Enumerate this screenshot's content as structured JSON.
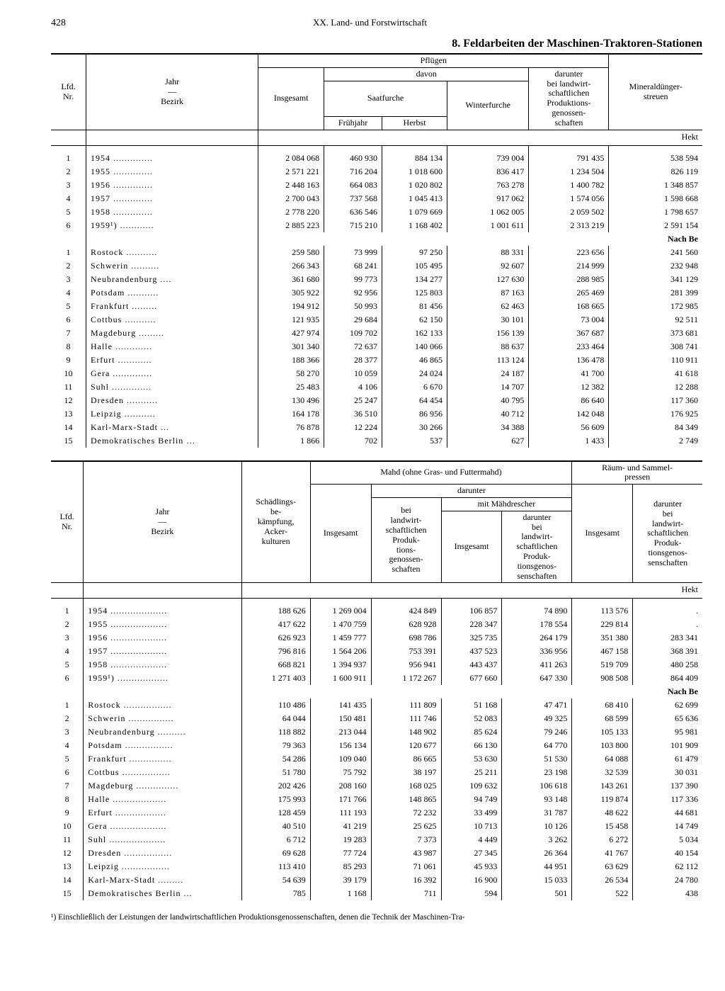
{
  "page_number": "428",
  "chapter": "XX. Land- und Forstwirtschaft",
  "title": "8. Feldarbeiten der Maschinen-Traktoren-Stationen",
  "unit_label": "Hekt",
  "section_label": "Nach Be",
  "footnote": "¹) Einschließlich der Leistungen der landwirtschaftlichen Produktionsgenossenschaften, denen die Technik der Maschinen-Tra-",
  "table1": {
    "head": {
      "lfd": "Lfd.\nNr.",
      "jahr": "Jahr",
      "bezirk": "Bezirk",
      "pfluegen": "Pflügen",
      "insgesamt": "Insgesamt",
      "davon": "davon",
      "saatfurche": "Saatfurche",
      "fruehjahr": "Frühjahr",
      "herbst": "Herbst",
      "winterfurche": "Winterfurche",
      "darunter": "darunter\nbei landwirt-\nschaftlichen\nProduktions-\ngenossen-\nschaften",
      "mineral": "Mineraldünger-\nstreuen"
    },
    "years": [
      {
        "nr": "1",
        "lbl": "1954",
        "c": [
          "2 084 068",
          "460 930",
          "884 134",
          "739 004",
          "791 435",
          "538 594"
        ]
      },
      {
        "nr": "2",
        "lbl": "1955",
        "c": [
          "2 571 221",
          "716 204",
          "1 018 600",
          "836 417",
          "1 234 504",
          "826 119"
        ]
      },
      {
        "nr": "3",
        "lbl": "1956",
        "c": [
          "2 448 163",
          "664 083",
          "1 020 802",
          "763 278",
          "1 400 782",
          "1 348 857"
        ]
      },
      {
        "nr": "4",
        "lbl": "1957",
        "c": [
          "2 700 043",
          "737 568",
          "1 045 413",
          "917 062",
          "1 574 056",
          "1 598 668"
        ]
      },
      {
        "nr": "5",
        "lbl": "1958",
        "c": [
          "2 778 220",
          "636 546",
          "1 079 669",
          "1 062 005",
          "2 059 502",
          "1 798 657"
        ]
      },
      {
        "nr": "6",
        "lbl": "1959¹)",
        "c": [
          "2 885 223",
          "715 210",
          "1 168 402",
          "1 001 611",
          "2 313 219",
          "2 591 154"
        ]
      }
    ],
    "bezirke": [
      {
        "nr": "1",
        "lbl": "Rostock",
        "c": [
          "259 580",
          "73 999",
          "97 250",
          "88 331",
          "223 656",
          "241 560"
        ]
      },
      {
        "nr": "2",
        "lbl": "Schwerin",
        "c": [
          "266 343",
          "68 241",
          "105 495",
          "92 607",
          "214 999",
          "232 948"
        ]
      },
      {
        "nr": "3",
        "lbl": "Neubrandenburg",
        "c": [
          "361 680",
          "99 773",
          "134 277",
          "127 630",
          "288 985",
          "341 129"
        ]
      },
      {
        "nr": "4",
        "lbl": "Potsdam",
        "c": [
          "305 922",
          "92 956",
          "125 803",
          "87 163",
          "265 469",
          "281 399"
        ]
      },
      {
        "nr": "5",
        "lbl": "Frankfurt",
        "c": [
          "194 912",
          "50 993",
          "81 456",
          "62 463",
          "168 665",
          "172 985"
        ]
      },
      {
        "nr": "6",
        "lbl": "Cottbus",
        "c": [
          "121 935",
          "29 684",
          "62 150",
          "30 101",
          "73 004",
          "92 511"
        ]
      },
      {
        "nr": "7",
        "lbl": "Magdeburg",
        "c": [
          "427 974",
          "109 702",
          "162 133",
          "156 139",
          "367 687",
          "373 681"
        ]
      },
      {
        "nr": "8",
        "lbl": "Halle",
        "c": [
          "301 340",
          "72 637",
          "140 066",
          "88 637",
          "233 464",
          "308 741"
        ]
      },
      {
        "nr": "9",
        "lbl": "Erfurt",
        "c": [
          "188 366",
          "28 377",
          "46 865",
          "113 124",
          "136 478",
          "110 911"
        ]
      },
      {
        "nr": "10",
        "lbl": "Gera",
        "c": [
          "58 270",
          "10 059",
          "24 024",
          "24 187",
          "41 700",
          "41 618"
        ]
      },
      {
        "nr": "11",
        "lbl": "Suhl",
        "c": [
          "25 483",
          "4 106",
          "6 670",
          "14 707",
          "12 382",
          "12 288"
        ]
      },
      {
        "nr": "12",
        "lbl": "Dresden",
        "c": [
          "130 496",
          "25 247",
          "64 454",
          "40 795",
          "86 640",
          "117 360"
        ]
      },
      {
        "nr": "13",
        "lbl": "Leipzig",
        "c": [
          "164 178",
          "36 510",
          "86 956",
          "40 712",
          "142 048",
          "176 925"
        ]
      },
      {
        "nr": "14",
        "lbl": "Karl-Marx-Stadt",
        "c": [
          "76 878",
          "12 224",
          "30 266",
          "34 388",
          "56 609",
          "84 349"
        ]
      },
      {
        "nr": "15",
        "lbl": "Demokratisches Berlin",
        "c": [
          "1 866",
          "702",
          "537",
          "627",
          "1 433",
          "2 749"
        ]
      }
    ]
  },
  "table2": {
    "head": {
      "lfd": "Lfd.\nNr.",
      "jahr": "Jahr",
      "bezirk": "Bezirk",
      "schaedling": "Schädlings-\nbe-\nkämpfung,\nAcker-\nkulturen",
      "mahd": "Mahd (ohne Gras- und Futtermahd)",
      "darunter": "darunter",
      "insgesamt": "Insgesamt",
      "bei_lpg": "bei\nlandwirt-\nschaftlichen\nProduk-\ntions-\ngenossen-\nschaften",
      "maehdrescher": "mit Mähdrescher",
      "md_insg": "Insgesamt",
      "md_lpg": "darunter\nbei\nlandwirt-\nschaftlichen\nProduk-\ntionsgenos-\nsenschaften",
      "raeum": "Räum- und Sammel-\npressen",
      "rp_insg": "Insgesamt",
      "rp_lpg": "darunter\nbei\nlandwirt-\nschaftlichen\nProduk-\ntionsgenos-\nsenschaften"
    },
    "years": [
      {
        "nr": "1",
        "lbl": "1954",
        "c": [
          "188 626",
          "1 269 004",
          "424 849",
          "106 857",
          "74 890",
          "113 576",
          "."
        ]
      },
      {
        "nr": "2",
        "lbl": "1955",
        "c": [
          "417 622",
          "1 470 759",
          "628 928",
          "228 347",
          "178 554",
          "229 814",
          "."
        ]
      },
      {
        "nr": "3",
        "lbl": "1956",
        "c": [
          "626 923",
          "1 459 777",
          "698 786",
          "325 735",
          "264 179",
          "351 380",
          "283 341"
        ]
      },
      {
        "nr": "4",
        "lbl": "1957",
        "c": [
          "796 816",
          "1 564 206",
          "753 391",
          "437 523",
          "336 956",
          "467 158",
          "368 391"
        ]
      },
      {
        "nr": "5",
        "lbl": "1958",
        "c": [
          "668 821",
          "1 394 937",
          "956 941",
          "443 437",
          "411 263",
          "519 709",
          "480 258"
        ]
      },
      {
        "nr": "6",
        "lbl": "1959¹)",
        "c": [
          "1 271 403",
          "1 600 911",
          "1 172 267",
          "677 660",
          "647 330",
          "908 508",
          "864 409"
        ]
      }
    ],
    "bezirke": [
      {
        "nr": "1",
        "lbl": "Rostock",
        "c": [
          "110 486",
          "141 435",
          "111 809",
          "51 168",
          "47 471",
          "68 410",
          "62 699"
        ]
      },
      {
        "nr": "2",
        "lbl": "Schwerin",
        "c": [
          "64 044",
          "150 481",
          "111 746",
          "52 083",
          "49 325",
          "68 599",
          "65 636"
        ]
      },
      {
        "nr": "3",
        "lbl": "Neubrandenburg",
        "c": [
          "118 882",
          "213 044",
          "148 902",
          "85 624",
          "79 246",
          "105 133",
          "95 981"
        ]
      },
      {
        "nr": "4",
        "lbl": "Potsdam",
        "c": [
          "79 363",
          "156 134",
          "120 677",
          "66 130",
          "64 770",
          "103 800",
          "101 909"
        ]
      },
      {
        "nr": "5",
        "lbl": "Frankfurt",
        "c": [
          "54 286",
          "109 040",
          "86 665",
          "53 630",
          "51 530",
          "64 088",
          "61 479"
        ]
      },
      {
        "nr": "6",
        "lbl": "Cottbus",
        "c": [
          "51 780",
          "75 792",
          "38 197",
          "25 211",
          "23 198",
          "32 539",
          "30 031"
        ]
      },
      {
        "nr": "7",
        "lbl": "Magdeburg",
        "c": [
          "202 426",
          "208 160",
          "168 025",
          "109 632",
          "106 618",
          "143 261",
          "137 390"
        ]
      },
      {
        "nr": "8",
        "lbl": "Halle",
        "c": [
          "175 993",
          "171 766",
          "148 865",
          "94 749",
          "93 148",
          "119 874",
          "117 336"
        ]
      },
      {
        "nr": "9",
        "lbl": "Erfurt",
        "c": [
          "128 459",
          "111 193",
          "72 232",
          "33 499",
          "31 787",
          "48 622",
          "44 681"
        ]
      },
      {
        "nr": "10",
        "lbl": "Gera",
        "c": [
          "40 510",
          "41 219",
          "25 625",
          "10 713",
          "10 126",
          "15 458",
          "14 749"
        ]
      },
      {
        "nr": "11",
        "lbl": "Suhl",
        "c": [
          "6 712",
          "19 283",
          "7 373",
          "4 449",
          "3 262",
          "6 272",
          "5 034"
        ]
      },
      {
        "nr": "12",
        "lbl": "Dresden",
        "c": [
          "69 628",
          "77 724",
          "43 987",
          "27 345",
          "26 364",
          "41 767",
          "40 154"
        ]
      },
      {
        "nr": "13",
        "lbl": "Leipzig",
        "c": [
          "113 410",
          "85 293",
          "71 061",
          "45 933",
          "44 951",
          "63 629",
          "62 112"
        ]
      },
      {
        "nr": "14",
        "lbl": "Karl-Marx-Stadt",
        "c": [
          "54 639",
          "39 179",
          "16 392",
          "16 900",
          "15 033",
          "26 534",
          "24 780"
        ]
      },
      {
        "nr": "15",
        "lbl": "Demokratisches Berlin",
        "c": [
          "785",
          "1 168",
          "711",
          "594",
          "501",
          "522",
          "438"
        ]
      }
    ]
  }
}
